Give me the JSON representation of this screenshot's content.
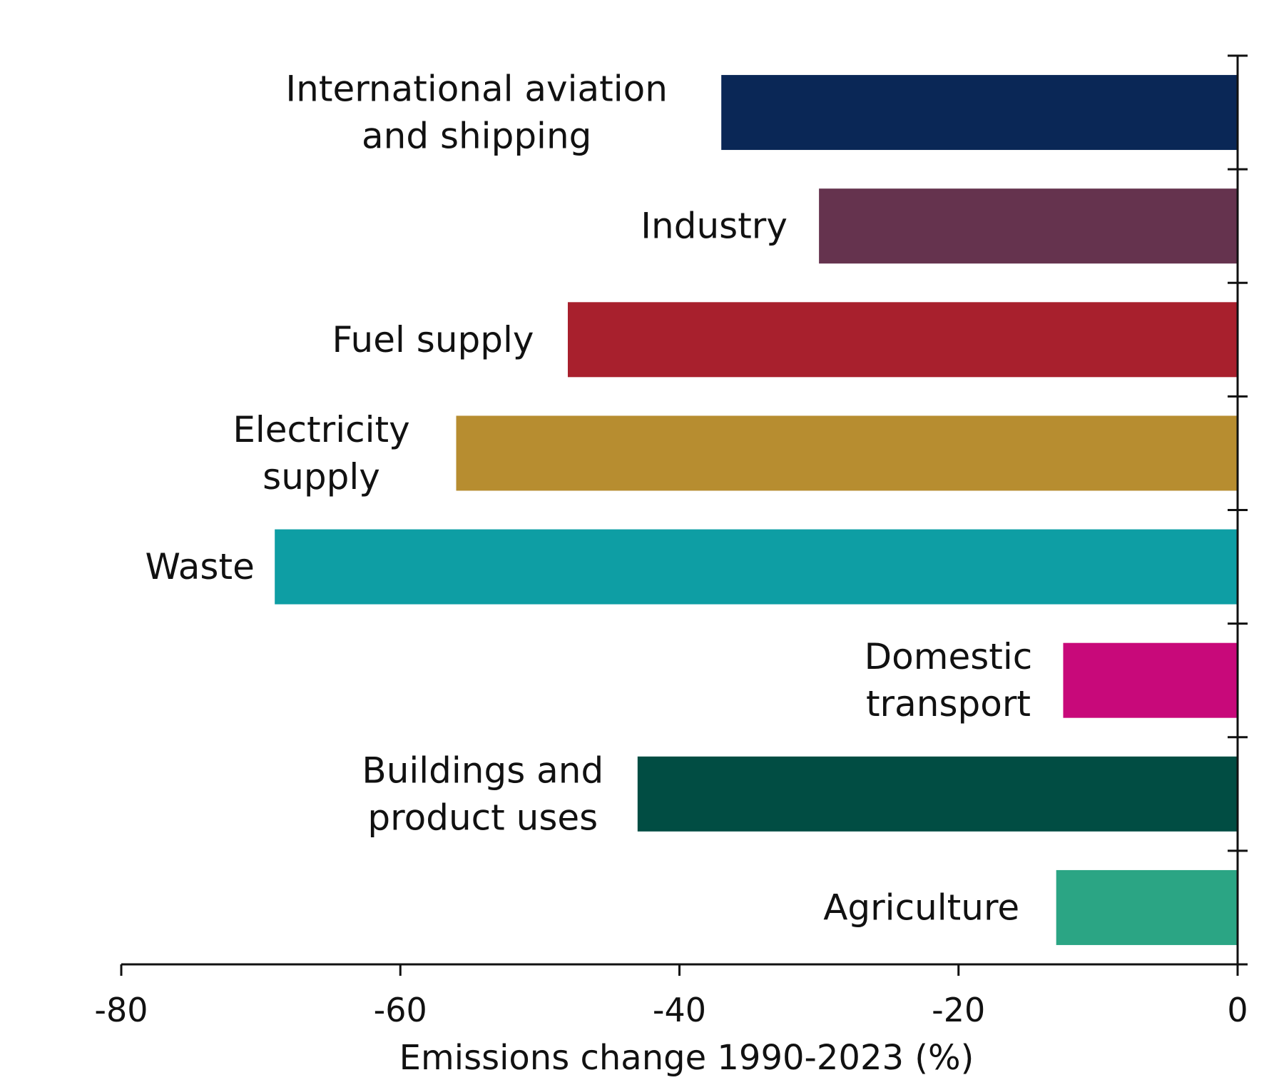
{
  "chart_data": {
    "type": "bar",
    "orientation": "horizontal",
    "categories": [
      [
        "International aviation",
        "and shipping"
      ],
      [
        "Industry"
      ],
      [
        "Fuel supply"
      ],
      [
        "Electricity",
        "supply"
      ],
      [
        "Waste"
      ],
      [
        "Domestic",
        "transport"
      ],
      [
        "Buildings and",
        "product uses"
      ],
      [
        "Agriculture"
      ]
    ],
    "values": [
      -37,
      -30,
      -48,
      -56,
      -69,
      -12.5,
      -43,
      -13
    ],
    "colors": [
      "#0a2756",
      "#65334e",
      "#a8202d",
      "#b78d30",
      "#0e9ea4",
      "#c8097a",
      "#014d43",
      "#2ba584"
    ],
    "xlabel": "Emissions change 1990-2023 (%)",
    "ylabel": "",
    "title": "",
    "xlim": [
      -80,
      0
    ],
    "xticks": [
      -80,
      -60,
      -40,
      -20,
      0
    ],
    "grid": false,
    "legend": "none"
  }
}
